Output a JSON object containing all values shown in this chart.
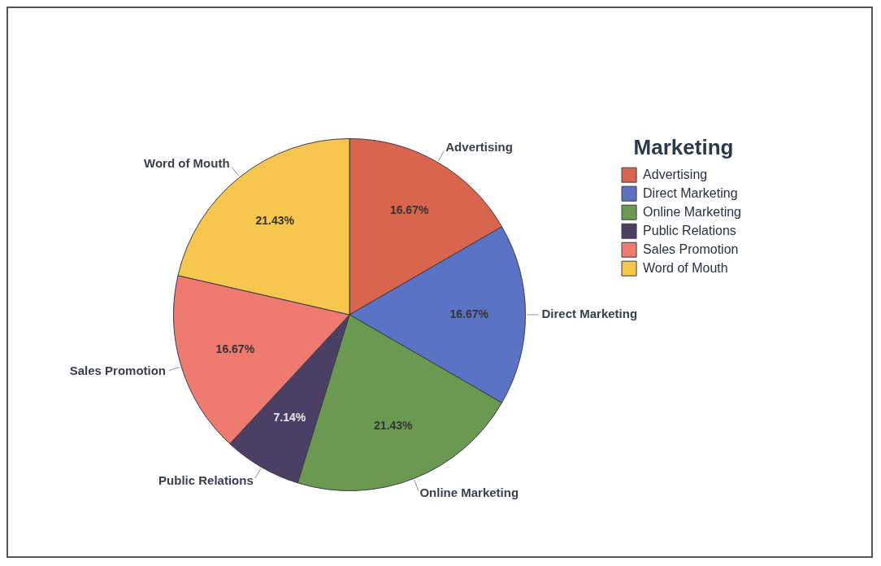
{
  "chart_data": {
    "type": "pie",
    "legend_title": "Marketing",
    "legend": "right",
    "categories": [
      "Advertising",
      "Direct Marketing",
      "Online Marketing",
      "Public Relations",
      "Sales Promotion",
      "Word of Mouth"
    ],
    "values": [
      16.67,
      16.67,
      21.43,
      7.14,
      16.67,
      21.43
    ],
    "value_labels": [
      "16.67%",
      "16.67%",
      "21.43%",
      "7.14%",
      "16.67%",
      "21.43%"
    ],
    "colors": [
      "#d9654f",
      "#5a73c4",
      "#6a9a52",
      "#4b3f63",
      "#ee7a70",
      "#f6c64d"
    ]
  }
}
